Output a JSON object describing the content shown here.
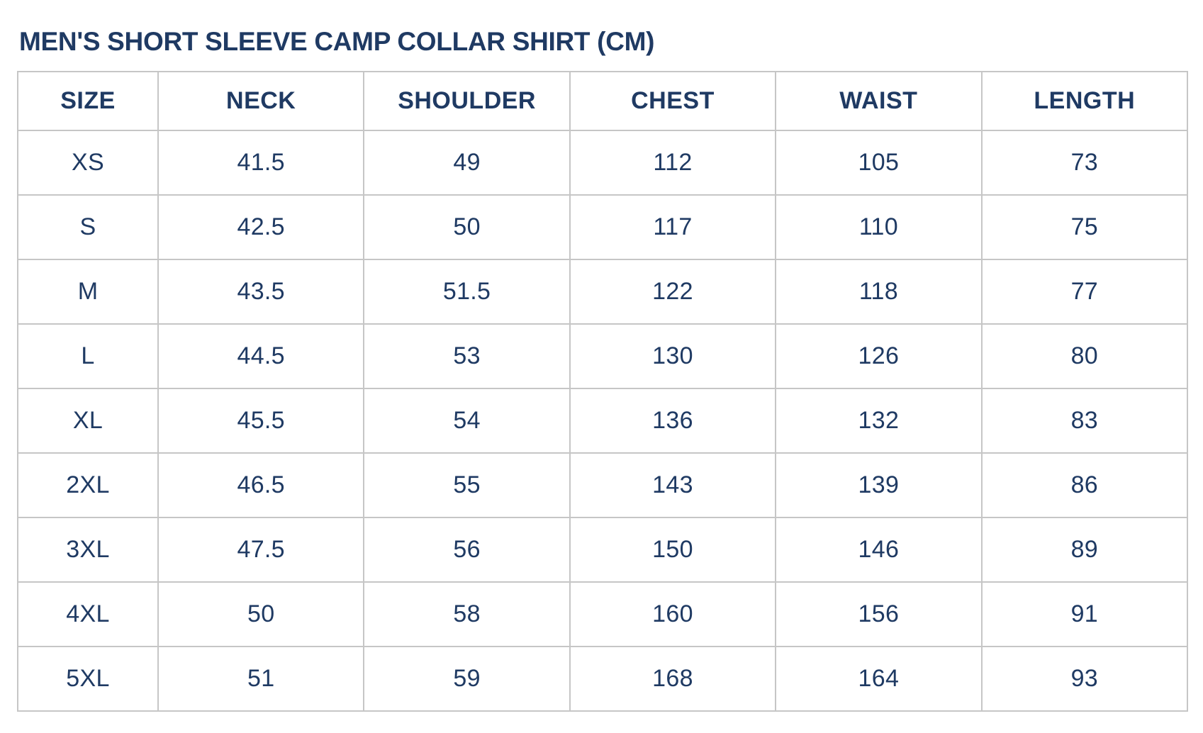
{
  "title": "MEN'S SHORT SLEEVE CAMP COLLAR SHIRT (CM)",
  "colors": {
    "text_navy": "#1f3a63",
    "border_gray": "#c6c6c6",
    "background": "#ffffff"
  },
  "chart_data": {
    "type": "table",
    "title": "MEN'S SHORT SLEEVE CAMP COLLAR SHIRT (CM)",
    "unit": "CM",
    "columns": [
      "SIZE",
      "NECK",
      "SHOULDER",
      "CHEST",
      "WAIST",
      "LENGTH"
    ],
    "rows": [
      [
        "XS",
        "41.5",
        "49",
        "112",
        "105",
        "73"
      ],
      [
        "S",
        "42.5",
        "50",
        "117",
        "110",
        "75"
      ],
      [
        "M",
        "43.5",
        "51.5",
        "122",
        "118",
        "77"
      ],
      [
        "L",
        "44.5",
        "53",
        "130",
        "126",
        "80"
      ],
      [
        "XL",
        "45.5",
        "54",
        "136",
        "132",
        "83"
      ],
      [
        "2XL",
        "46.5",
        "55",
        "143",
        "139",
        "86"
      ],
      [
        "3XL",
        "47.5",
        "56",
        "150",
        "146",
        "89"
      ],
      [
        "4XL",
        "50",
        "58",
        "160",
        "156",
        "91"
      ],
      [
        "5XL",
        "51",
        "59",
        "168",
        "164",
        "93"
      ]
    ],
    "layout": {
      "grid": true,
      "header_position": "top",
      "size_column_narrow": true
    }
  }
}
